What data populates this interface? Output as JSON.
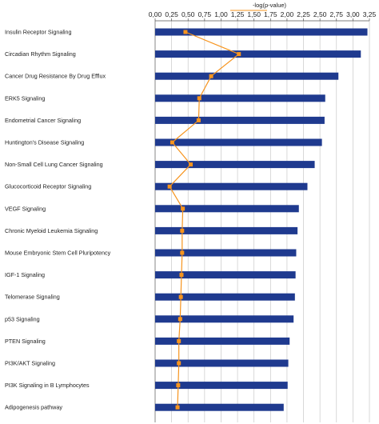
{
  "chart_data": {
    "type": "bar",
    "orientation": "horizontal",
    "title": "",
    "axis_title": "-log(p-value)",
    "xlim": [
      0,
      3.25
    ],
    "ticks": [
      "0,00",
      "0,25",
      "0,50",
      "0,75",
      "1,00",
      "1,25",
      "1,50",
      "1,75",
      "2,00",
      "2,25",
      "2,50",
      "2,75",
      "3,00",
      "3,25"
    ],
    "grid": "vertical",
    "axis_position": "top",
    "categories": [
      "Insulin Receptor Signaling",
      "Circadian Rhythm Signaling",
      "Cancer Drug Resistance By Drug Efflux",
      "ERK5 Signaling",
      "Endometrial Cancer Signaling",
      "Huntington's Disease Signaling",
      "Non-Small Cell Lung Cancer Signaling",
      "Glucocorticoid Receptor Signaling",
      "VEGF Signaling",
      "Chronic Myeloid Leukemia Signaling",
      "Mouse Embryonic Stem Cell Pluripotency",
      "IGF-1 Signaling",
      "Telomerase Signaling",
      "p53 Signaling",
      "PTEN Signaling",
      "PI3K/AKT Signaling",
      "PI3K Signaling in B Lymphocytes",
      "Adipogenesis pathway"
    ],
    "series": [
      {
        "type": "bar",
        "values": [
          3.22,
          3.12,
          2.78,
          2.58,
          2.57,
          2.53,
          2.42,
          2.31,
          2.18,
          2.16,
          2.14,
          2.13,
          2.12,
          2.1,
          2.04,
          2.02,
          2.01,
          1.95
        ],
        "color": "#1f3a8f"
      },
      {
        "type": "line",
        "values": [
          0.46,
          1.27,
          0.85,
          0.67,
          0.66,
          0.26,
          0.54,
          0.22,
          0.42,
          0.41,
          0.41,
          0.4,
          0.39,
          0.38,
          0.36,
          0.36,
          0.35,
          0.34
        ],
        "color": "#f7941d"
      }
    ]
  }
}
